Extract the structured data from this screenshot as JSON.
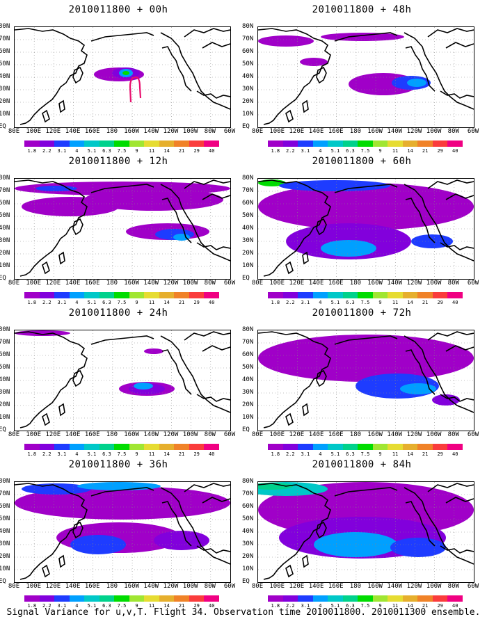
{
  "panels": [
    {
      "title": "2010011800 + 00h",
      "level": 0
    },
    {
      "title": "2010011800 + 48h",
      "level": 4
    },
    {
      "title": "2010011800 + 12h",
      "level": 1
    },
    {
      "title": "2010011800 + 60h",
      "level": 5
    },
    {
      "title": "2010011800 + 24h",
      "level": 2
    },
    {
      "title": "2010011800 + 72h",
      "level": 6
    },
    {
      "title": "2010011800 + 36h",
      "level": 3
    },
    {
      "title": "2010011800 + 84h",
      "level": 7
    }
  ],
  "lat_labels": [
    "80N",
    "70N",
    "60N",
    "50N",
    "40N",
    "30N",
    "20N",
    "10N",
    "EQ"
  ],
  "lon_labels": [
    "80E",
    "100E",
    "120E",
    "140E",
    "160E",
    "180",
    "160W",
    "140W",
    "120W",
    "100W",
    "80W",
    "60W"
  ],
  "colorbar": {
    "labels": [
      "1.8",
      "2.2",
      "3.1",
      "4",
      "5.1",
      "6.3",
      "7.5",
      "9",
      "11",
      "14",
      "21",
      "29",
      "40"
    ],
    "colors": [
      "#a000c8",
      "#8200dc",
      "#1e3cff",
      "#00a0ff",
      "#00c8c8",
      "#00d28c",
      "#00dc00",
      "#a0e632",
      "#e6dc32",
      "#e6af2d",
      "#f08228",
      "#fa3c3c",
      "#f00082"
    ]
  },
  "caption": "Signal Variance for u,v,T. Flight 34. Observation time 2010011800. 2010011300 ensemble."
}
